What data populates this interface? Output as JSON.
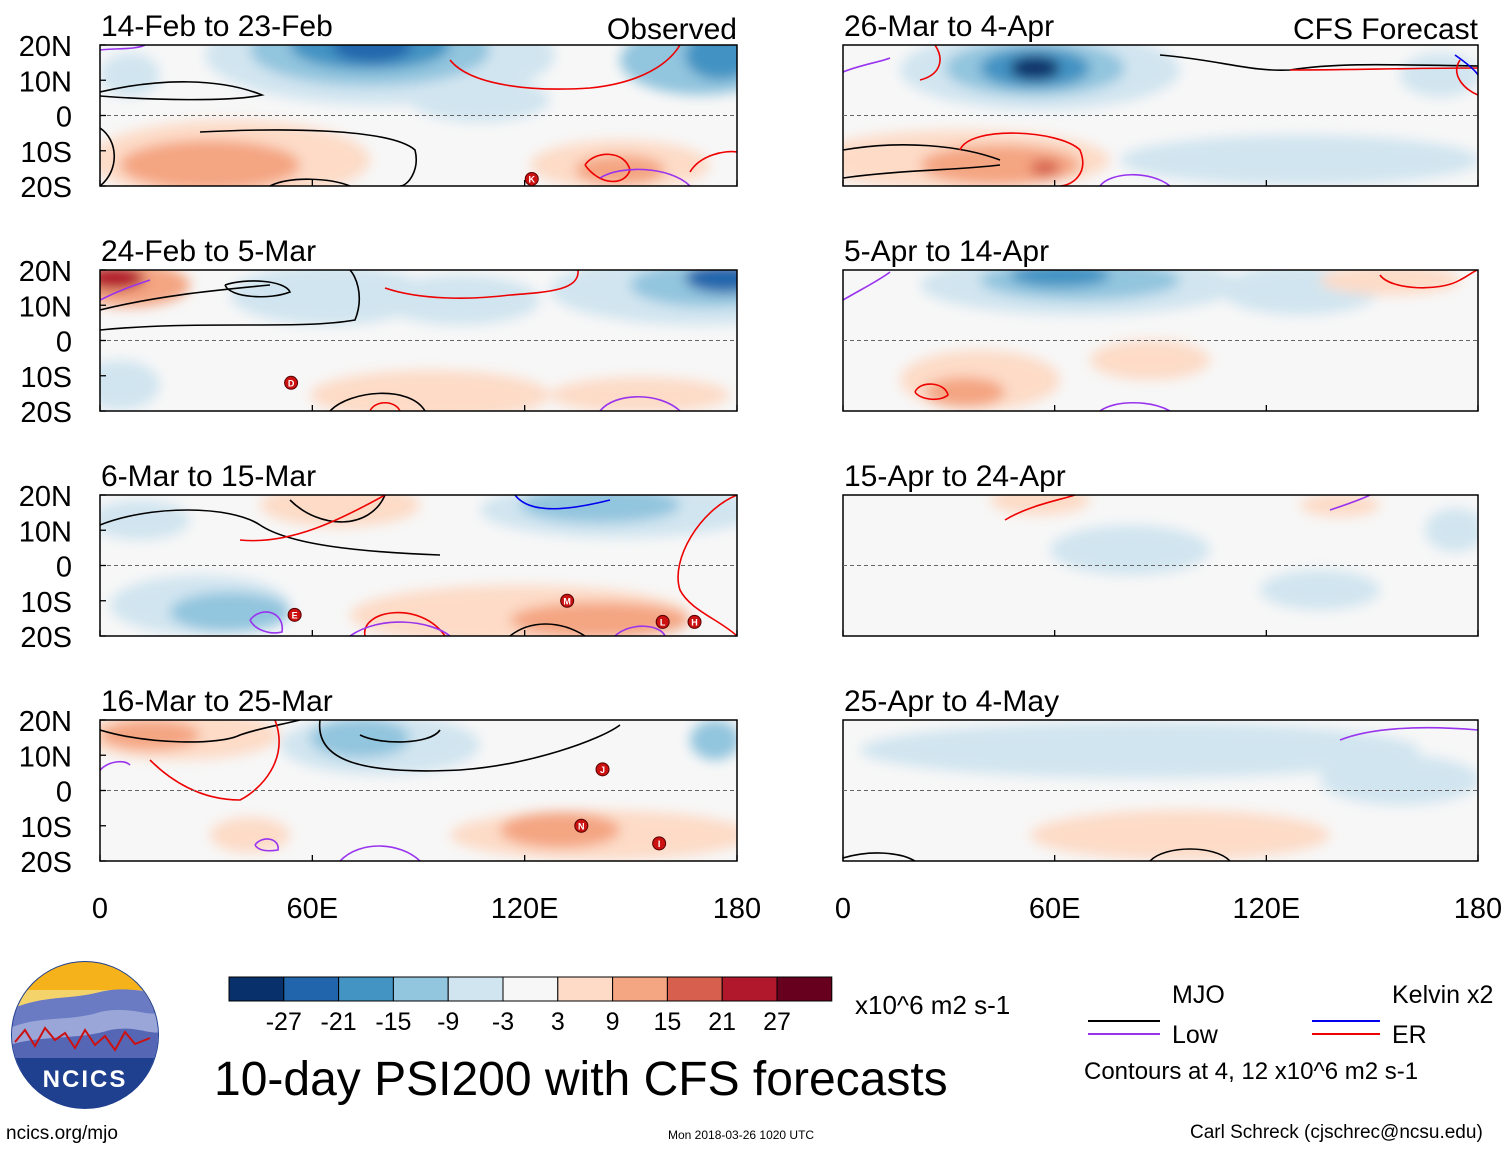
{
  "title": "10-day PSI200 with CFS forecasts",
  "logo": {
    "text": "NCICS"
  },
  "footer": {
    "url": "ncics.org/mjo",
    "timestamp": "Mon 2018-03-26 1020 UTC",
    "author": "Carl Schreck (cjschrec@ncsu.edu)"
  },
  "colorbar": {
    "ticks": [
      "-27",
      "-21",
      "-15",
      "-9",
      "-3",
      "3",
      "9",
      "15",
      "21",
      "27"
    ],
    "colors": [
      "#08306b",
      "#2166ac",
      "#4393c3",
      "#92c5de",
      "#d1e5f0",
      "#f7f7f7",
      "#fddbc7",
      "#f4a582",
      "#d6604d",
      "#b2182b",
      "#67001f"
    ],
    "units": "x10^6 m2 s-1"
  },
  "legend": {
    "items": [
      {
        "name": "MJO",
        "color": "#000000"
      },
      {
        "name": "Kelvin x2",
        "color": "#0000ee"
      },
      {
        "name": "Low",
        "color": "#9933ee"
      },
      {
        "name": "ER",
        "color": "#ee0000"
      }
    ],
    "note": "Contours at 4, 12 x10^6 m2 s-1"
  },
  "chart_data": {
    "type": "heatmap",
    "variable": "PSI200",
    "xticks": [
      "0",
      "60E",
      "120E",
      "180"
    ],
    "xlim": [
      0,
      180
    ],
    "yticks": [
      "20N",
      "10N",
      "0",
      "10S",
      "20S"
    ],
    "ylim": [
      -20,
      20
    ],
    "columns": [
      {
        "heading": "Observed",
        "panels": [
          "14-Feb to 23-Feb",
          "24-Feb to 5-Mar",
          "6-Mar to 15-Mar",
          "16-Mar to 25-Mar"
        ]
      },
      {
        "heading": "CFS Forecast",
        "panels": [
          "26-Mar to 4-Apr",
          "5-Apr to 14-Apr",
          "15-Apr to 24-Apr",
          "25-Apr to 4-May"
        ]
      }
    ],
    "storms": [
      {
        "panel": 0,
        "label": "K",
        "lon": 122,
        "lat": -18
      },
      {
        "panel": 1,
        "label": "D",
        "lon": 54,
        "lat": -12
      },
      {
        "panel": 2,
        "label": "E",
        "lon": 55,
        "lat": -14
      },
      {
        "panel": 2,
        "label": "M",
        "lon": 132,
        "lat": -10
      },
      {
        "panel": 2,
        "label": "L",
        "lon": 159,
        "lat": -16
      },
      {
        "panel": 2,
        "label": "H",
        "lon": 168,
        "lat": -16
      },
      {
        "panel": 3,
        "label": "J",
        "lon": 142,
        "lat": 6
      },
      {
        "panel": 3,
        "label": "N",
        "lon": 136,
        "lat": -10
      },
      {
        "panel": 3,
        "label": "I",
        "lon": 158,
        "lat": -15
      }
    ]
  }
}
